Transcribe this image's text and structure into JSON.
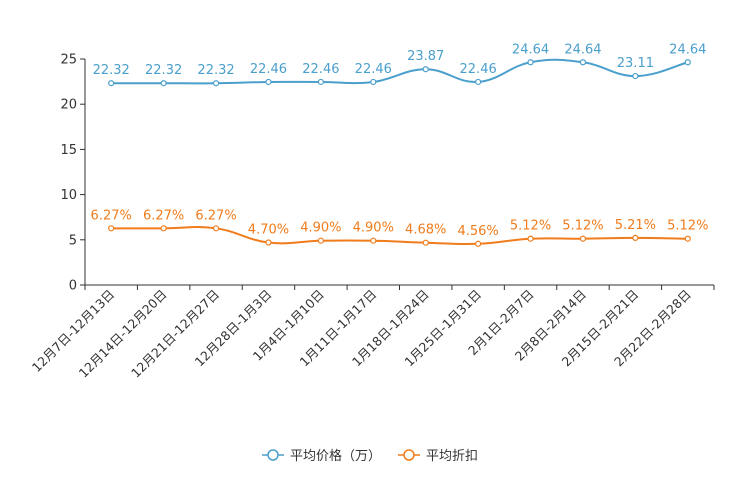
{
  "chart_data": {
    "type": "line",
    "categories": [
      "12月7日-12月13日",
      "12月14日-12月20日",
      "12月21日-12月27日",
      "12月28日-1月3日",
      "1月4日-1月10日",
      "1月11日-1月17日",
      "1月18日-1月24日",
      "1月25日-1月31日",
      "2月1日-2月7日",
      "2月8日-2月14日",
      "2月15日-2月21日",
      "2月22日-2月28日"
    ],
    "series": [
      {
        "name": "平均价格（万）",
        "color": "#4a9fcc",
        "values": [
          22.32,
          22.32,
          22.32,
          22.46,
          22.46,
          22.46,
          23.87,
          22.46,
          24.64,
          24.64,
          23.11,
          24.64
        ],
        "labels": [
          "22.32",
          "22.32",
          "22.32",
          "22.46",
          "22.46",
          "22.46",
          "23.87",
          "22.46",
          "24.64",
          "24.64",
          "23.11",
          "24.64"
        ]
      },
      {
        "name": "平均折扣",
        "color": "#f07c1c",
        "values": [
          6.27,
          6.27,
          6.27,
          4.7,
          4.9,
          4.9,
          4.68,
          4.56,
          5.12,
          5.12,
          5.21,
          5.12
        ],
        "labels": [
          "6.27%",
          "6.27%",
          "6.27%",
          "4.70%",
          "4.90%",
          "4.90%",
          "4.68%",
          "4.56%",
          "5.12%",
          "5.12%",
          "5.21%",
          "5.12%"
        ]
      }
    ],
    "ylim": [
      0,
      25
    ],
    "yticks": [
      "0",
      "5",
      "10",
      "15",
      "20",
      "25"
    ],
    "title": "",
    "xlabel": "",
    "ylabel": "",
    "legend_position": "bottom-center"
  }
}
